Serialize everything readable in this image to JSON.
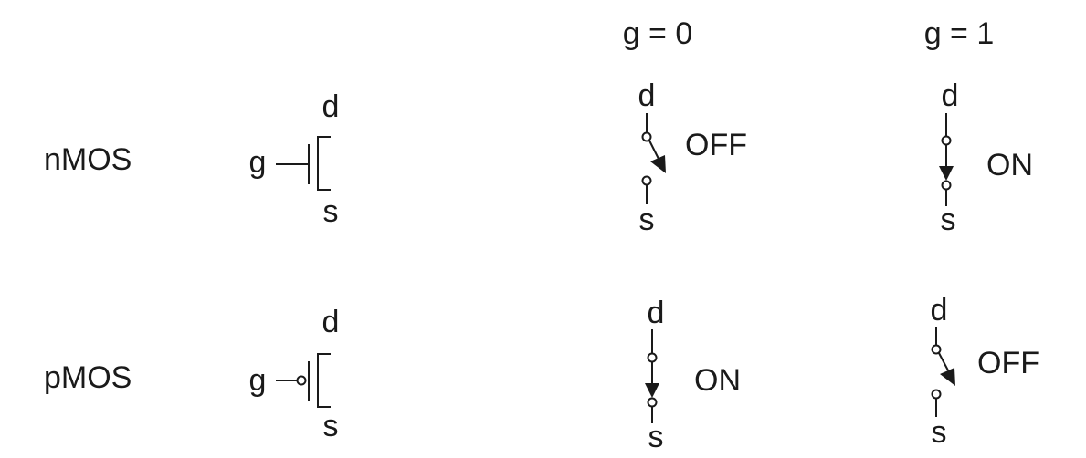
{
  "headers": {
    "g0": "g = 0",
    "g1": "g = 1"
  },
  "rows": [
    {
      "type": "nMOS",
      "symbol": {
        "gate": "g",
        "drain": "d",
        "source": "s",
        "gate_bubble": false
      },
      "g0": {
        "drain": "d",
        "source": "s",
        "state": "OFF"
      },
      "g1": {
        "drain": "d",
        "source": "s",
        "state": "ON"
      }
    },
    {
      "type": "pMOS",
      "symbol": {
        "gate": "g",
        "drain": "d",
        "source": "s",
        "gate_bubble": true
      },
      "g0": {
        "drain": "d",
        "source": "s",
        "state": "ON"
      },
      "g1": {
        "drain": "d",
        "source": "s",
        "state": "OFF"
      }
    }
  ],
  "colors": {
    "ink": "#1a1a1a",
    "background": "#ffffff"
  }
}
